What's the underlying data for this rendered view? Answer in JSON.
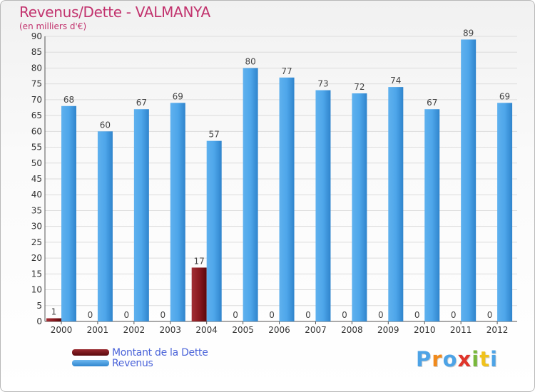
{
  "chart_data": {
    "type": "bar",
    "title": "Revenus/Dette - VALMANYA",
    "subtitle": "(en milliers d'€)",
    "categories": [
      "2000",
      "2001",
      "2002",
      "2003",
      "2004",
      "2005",
      "2006",
      "2007",
      "2008",
      "2009",
      "2010",
      "2011",
      "2012"
    ],
    "series": [
      {
        "name": "Montant de la Dette",
        "color": "#7a0f14",
        "values": [
          1,
          0,
          0,
          0,
          17,
          0,
          0,
          0,
          0,
          0,
          0,
          0,
          0
        ]
      },
      {
        "name": "Revenus",
        "color": "#4da3e6",
        "values": [
          68,
          60,
          67,
          69,
          57,
          80,
          77,
          73,
          72,
          74,
          67,
          89,
          69
        ]
      }
    ],
    "ylim": [
      0,
      90
    ],
    "yticks": [
      0,
      5,
      10,
      15,
      20,
      25,
      30,
      35,
      40,
      45,
      50,
      55,
      60,
      65,
      70,
      75,
      80,
      85,
      90
    ],
    "grid": true,
    "legend": "bottom-left"
  },
  "logo": {
    "text": "Proxiti",
    "colors": [
      "#4da3e6",
      "#f08a1c",
      "#4da3e6",
      "#e0352b",
      "#79b83a",
      "#f0c21c",
      "#4da3e6"
    ]
  }
}
